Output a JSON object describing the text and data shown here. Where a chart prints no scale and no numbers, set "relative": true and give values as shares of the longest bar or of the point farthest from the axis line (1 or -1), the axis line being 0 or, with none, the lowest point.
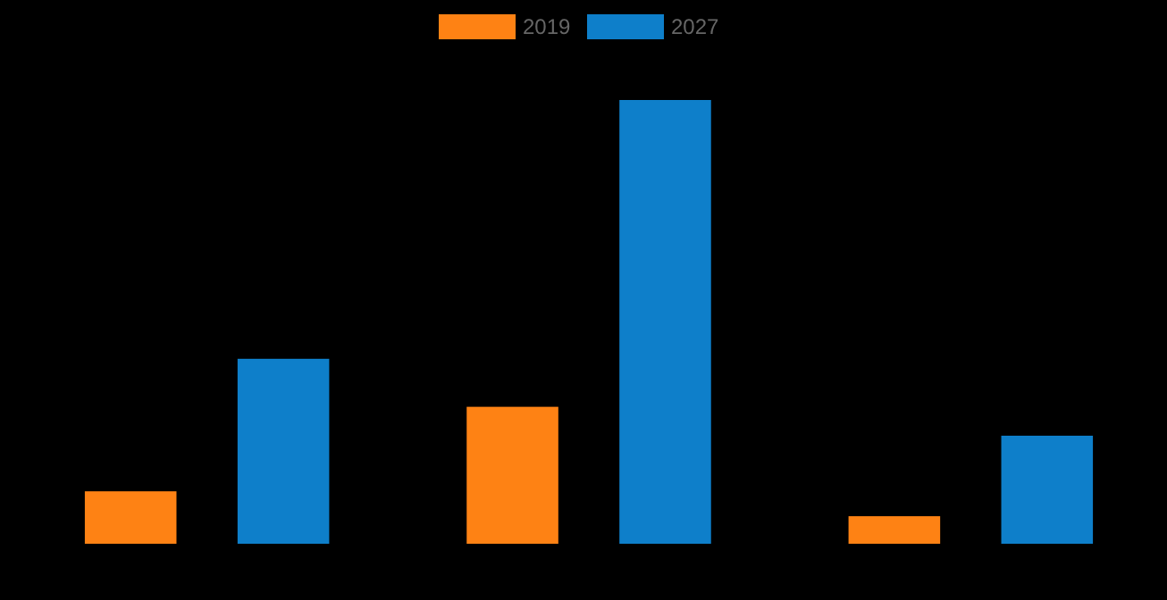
{
  "chart_data": {
    "type": "bar",
    "relative": true,
    "categories": [
      null,
      null,
      null
    ],
    "series": [
      {
        "name": "2019",
        "color": "#fe8214",
        "values": [
          0.12,
          0.31,
          0.064
        ]
      },
      {
        "name": "2027",
        "color": "#0e7fca",
        "values": [
          0.418,
          1,
          0.245
        ]
      }
    ],
    "legend": "top",
    "grid": false
  }
}
